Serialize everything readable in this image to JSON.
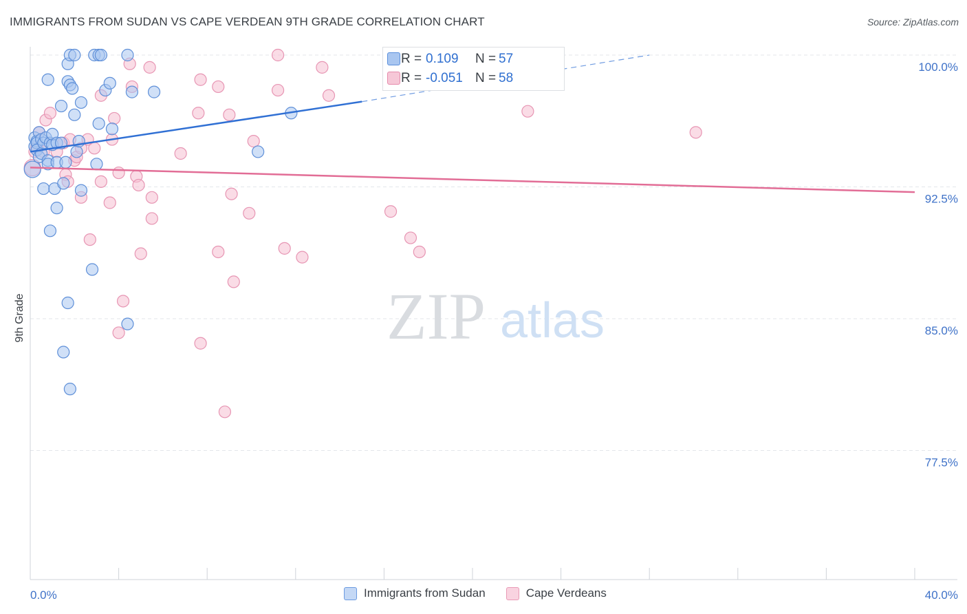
{
  "title": "IMMIGRANTS FROM SUDAN VS CAPE VERDEAN 9TH GRADE CORRELATION CHART",
  "source": "Source: ZipAtlas.com",
  "watermark": {
    "zip": "ZIP",
    "atlas": "atlas"
  },
  "stats": [
    {
      "r_label": "R =",
      "r_value": "0.109",
      "n_label": "N =",
      "n_value": "57"
    },
    {
      "r_label": "R =",
      "r_value": "-0.051",
      "n_label": "N =",
      "n_value": "58"
    }
  ],
  "legend": {
    "series1": "Immigrants from Sudan",
    "series2": "Cape Verdeans"
  },
  "colors": {
    "blue": "#3070d4",
    "blue_fill": "#a9c6f0",
    "pink": "#e26d96",
    "pink_fill": "#f6bfd2",
    "grid": "#e3e6ea",
    "tick_text": "#3f72c8"
  },
  "chart_data": {
    "type": "scatter",
    "xlabel": "",
    "ylabel": "9th Grade",
    "xlim": [
      0,
      40
    ],
    "ylim": [
      71.5,
      100.8
    ],
    "x_tick_labels": [
      {
        "value": 0,
        "label": "0.0%"
      },
      {
        "value": 40,
        "label": "40.0%"
      }
    ],
    "y_tick_labels": [
      {
        "value": 100,
        "label": "100.0%"
      },
      {
        "value": 92.5,
        "label": "92.5%"
      },
      {
        "value": 85,
        "label": "85.0%"
      },
      {
        "value": 77.5,
        "label": "77.5%"
      }
    ],
    "series": [
      {
        "name": "Immigrants from Sudan",
        "r": 0.109,
        "n": 57,
        "trend": {
          "x0": 0,
          "y0": 94.5,
          "x1": 15,
          "y1": 97.35,
          "dash_x1": 28,
          "dash_y1": 100
        },
        "points": [
          [
            0.1,
            93.5
          ],
          [
            0.2,
            94.8
          ],
          [
            0.2,
            95.3
          ],
          [
            0.3,
            95.1
          ],
          [
            0.3,
            95.0
          ],
          [
            0.3,
            94.6
          ],
          [
            0.4,
            95.6
          ],
          [
            0.4,
            94.2
          ],
          [
            0.5,
            95.2
          ],
          [
            0.5,
            94.4
          ],
          [
            0.6,
            95.0
          ],
          [
            0.6,
            92.4
          ],
          [
            0.7,
            95.3
          ],
          [
            0.8,
            94.0
          ],
          [
            0.8,
            93.8
          ],
          [
            0.8,
            98.6
          ],
          [
            0.9,
            95.0
          ],
          [
            1.0,
            94.9
          ],
          [
            1.0,
            95.5
          ],
          [
            1.1,
            92.4
          ],
          [
            1.2,
            95.0
          ],
          [
            1.2,
            91.3
          ],
          [
            1.2,
            93.9
          ],
          [
            1.4,
            95.0
          ],
          [
            1.4,
            97.1
          ],
          [
            1.5,
            92.7
          ],
          [
            1.6,
            93.9
          ],
          [
            1.7,
            99.5
          ],
          [
            1.7,
            98.5
          ],
          [
            1.8,
            100.0
          ],
          [
            1.8,
            98.3
          ],
          [
            1.9,
            98.1
          ],
          [
            2.0,
            100.0
          ],
          [
            2.0,
            96.6
          ],
          [
            2.1,
            94.5
          ],
          [
            2.2,
            95.1
          ],
          [
            2.3,
            97.3
          ],
          [
            2.3,
            92.3
          ],
          [
            2.9,
            100.0
          ],
          [
            3.1,
            96.1
          ],
          [
            3.1,
            100.0
          ],
          [
            3.2,
            100.0
          ],
          [
            3.4,
            98.0
          ],
          [
            3.7,
            95.8
          ],
          [
            3.6,
            98.4
          ],
          [
            4.4,
            100.0
          ],
          [
            4.6,
            97.9
          ],
          [
            5.6,
            97.9
          ],
          [
            10.3,
            94.5
          ],
          [
            11.8,
            96.7
          ],
          [
            0.9,
            90.0
          ],
          [
            2.8,
            87.8
          ],
          [
            1.7,
            85.9
          ],
          [
            4.4,
            84.7
          ],
          [
            1.5,
            83.1
          ],
          [
            1.8,
            81.0
          ],
          [
            3.0,
            93.8
          ]
        ]
      },
      {
        "name": "Cape Verdeans",
        "r": -0.051,
        "n": 58,
        "trend": {
          "x0": 0,
          "y0": 93.6,
          "x1": 40,
          "y1": 92.2
        },
        "points": [
          [
            0.1,
            93.6
          ],
          [
            0.2,
            94.5
          ],
          [
            0.3,
            94.8
          ],
          [
            0.4,
            95.6
          ],
          [
            0.6,
            94.5
          ],
          [
            0.7,
            96.3
          ],
          [
            0.9,
            96.7
          ],
          [
            1.2,
            94.5
          ],
          [
            1.5,
            95.0
          ],
          [
            1.6,
            93.2
          ],
          [
            1.7,
            92.8
          ],
          [
            1.8,
            95.2
          ],
          [
            2.0,
            94.0
          ],
          [
            2.1,
            94.2
          ],
          [
            2.3,
            91.9
          ],
          [
            2.3,
            94.7
          ],
          [
            2.6,
            95.2
          ],
          [
            2.7,
            89.5
          ],
          [
            2.9,
            94.7
          ],
          [
            3.2,
            92.8
          ],
          [
            3.2,
            97.7
          ],
          [
            3.6,
            91.6
          ],
          [
            3.7,
            95.2
          ],
          [
            3.8,
            96.4
          ],
          [
            4.0,
            93.3
          ],
          [
            4.2,
            86.0
          ],
          [
            4.5,
            99.5
          ],
          [
            4.6,
            98.2
          ],
          [
            4.8,
            93.1
          ],
          [
            4.9,
            92.6
          ],
          [
            5.0,
            88.7
          ],
          [
            5.5,
            91.9
          ],
          [
            5.4,
            99.3
          ],
          [
            5.5,
            90.7
          ],
          [
            6.8,
            94.4
          ],
          [
            7.6,
            96.7
          ],
          [
            7.7,
            98.6
          ],
          [
            7.7,
            83.6
          ],
          [
            8.5,
            98.2
          ],
          [
            8.5,
            88.8
          ],
          [
            8.8,
            79.7
          ],
          [
            9.0,
            96.6
          ],
          [
            9.1,
            92.1
          ],
          [
            9.2,
            87.1
          ],
          [
            9.9,
            91.0
          ],
          [
            10.1,
            95.1
          ],
          [
            11.2,
            100.0
          ],
          [
            11.2,
            98.0
          ],
          [
            11.5,
            89.0
          ],
          [
            12.3,
            88.5
          ],
          [
            13.2,
            99.3
          ],
          [
            13.5,
            97.7
          ],
          [
            16.3,
            91.1
          ],
          [
            17.2,
            89.6
          ],
          [
            17.6,
            88.8
          ],
          [
            22.5,
            96.8
          ],
          [
            30.1,
            95.6
          ],
          [
            4.0,
            84.2
          ]
        ]
      }
    ]
  }
}
